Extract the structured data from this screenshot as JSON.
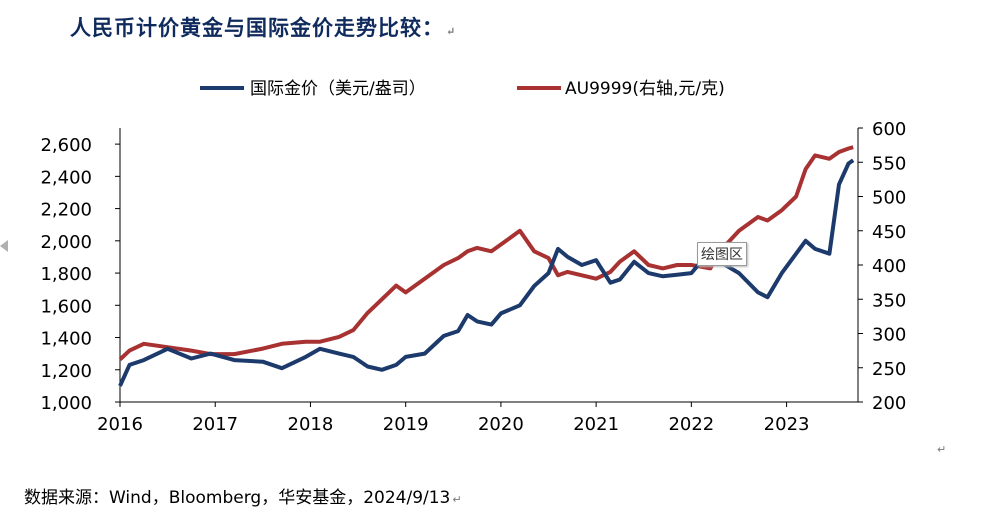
{
  "title": "人民币计价黄金与国际金价走势比较：",
  "paragraph_mark": "↵",
  "source_note": "数据来源：Wind，Bloomberg，华安基金，2024/9/13",
  "tooltip": "绘图区",
  "colors": {
    "series_international": "#1c3a6b",
    "series_au9999": "#a83232",
    "axis": "#000000"
  },
  "chart_data": {
    "type": "line",
    "title": "",
    "x_ticks": [
      "2016",
      "2017",
      "2018",
      "2019",
      "2020",
      "2021",
      "2022",
      "2023"
    ],
    "x_range": [
      2016.0,
      2023.75
    ],
    "y_left_ticks": [
      "1,000",
      "1,200",
      "1,400",
      "1,600",
      "1,800",
      "2,000",
      "2,200",
      "2,400",
      "2,600"
    ],
    "y_left_range": [
      1000,
      2700
    ],
    "y_right_ticks": [
      "200",
      "250",
      "300",
      "350",
      "400",
      "450",
      "500",
      "550",
      "600"
    ],
    "y_right_range": [
      200,
      600
    ],
    "legend_position": "top",
    "series": [
      {
        "name": "国际金价（美元/盎司）",
        "axis": "left",
        "x": [
          2016.0,
          2016.1,
          2016.25,
          2016.5,
          2016.75,
          2016.95,
          2017.2,
          2017.5,
          2017.7,
          2017.95,
          2018.1,
          2018.3,
          2018.45,
          2018.6,
          2018.75,
          2018.9,
          2019.0,
          2019.2,
          2019.4,
          2019.55,
          2019.65,
          2019.75,
          2019.9,
          2020.0,
          2020.2,
          2020.35,
          2020.5,
          2020.6,
          2020.7,
          2020.85,
          2021.0,
          2021.15,
          2021.25,
          2021.4,
          2021.55,
          2021.7,
          2021.85,
          2022.0,
          2022.2,
          2022.3,
          2022.5,
          2022.7,
          2022.8,
          2022.95,
          2023.1,
          2023.2,
          2023.3,
          2023.45,
          2023.55,
          2023.65,
          2023.7
        ],
        "values": [
          1100,
          1230,
          1260,
          1330,
          1270,
          1300,
          1260,
          1250,
          1210,
          1280,
          1330,
          1300,
          1280,
          1220,
          1200,
          1230,
          1280,
          1300,
          1410,
          1440,
          1540,
          1500,
          1480,
          1550,
          1600,
          1720,
          1800,
          1950,
          1900,
          1850,
          1880,
          1740,
          1760,
          1870,
          1800,
          1780,
          1790,
          1800,
          1940,
          1870,
          1800,
          1680,
          1650,
          1800,
          1920,
          2000,
          1950,
          1920,
          2350,
          2480,
          2500
        ]
      },
      {
        "name": "AU9999(右轴,元/克)",
        "axis": "right",
        "x": [
          2016.0,
          2016.1,
          2016.25,
          2016.5,
          2016.75,
          2016.95,
          2017.2,
          2017.5,
          2017.7,
          2017.95,
          2018.1,
          2018.3,
          2018.45,
          2018.6,
          2018.75,
          2018.9,
          2019.0,
          2019.2,
          2019.4,
          2019.55,
          2019.65,
          2019.75,
          2019.9,
          2020.0,
          2020.2,
          2020.35,
          2020.5,
          2020.6,
          2020.7,
          2020.85,
          2021.0,
          2021.15,
          2021.25,
          2021.4,
          2021.55,
          2021.7,
          2021.85,
          2022.0,
          2022.2,
          2022.3,
          2022.5,
          2022.7,
          2022.8,
          2022.95,
          2023.1,
          2023.2,
          2023.3,
          2023.45,
          2023.55,
          2023.65,
          2023.7
        ],
        "values": [
          262,
          275,
          285,
          280,
          275,
          270,
          270,
          278,
          285,
          288,
          288,
          295,
          305,
          330,
          350,
          370,
          360,
          380,
          400,
          410,
          420,
          425,
          420,
          430,
          450,
          420,
          410,
          385,
          390,
          385,
          380,
          390,
          405,
          420,
          400,
          395,
          400,
          400,
          395,
          420,
          450,
          470,
          465,
          480,
          500,
          540,
          560,
          555,
          565,
          570,
          572
        ]
      }
    ]
  }
}
